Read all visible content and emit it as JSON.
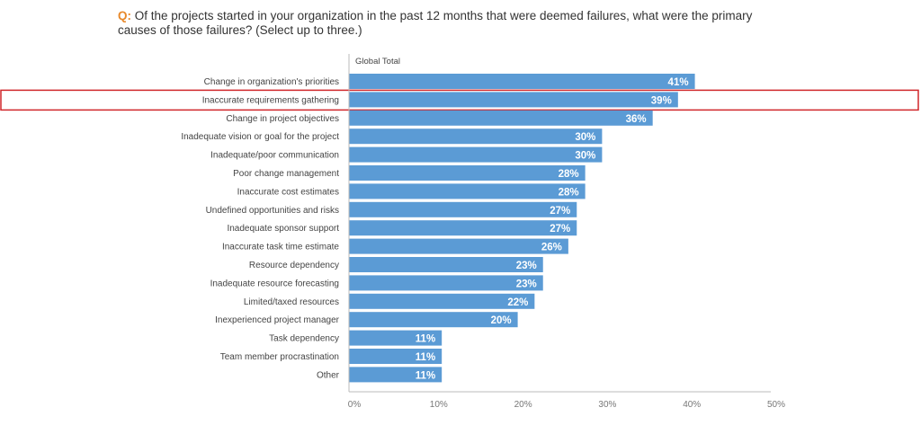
{
  "chart_data": {
    "type": "bar",
    "orientation": "horizontal",
    "question_prefix": "Q:",
    "title": "Of the projects started in your organization in the past 12 months that were deemed failures, what were the primary causes of those failures? (Select up to three.)",
    "series_label": "Global Total",
    "categories": [
      "Change in organization's priorities",
      "Inaccurate requirements gathering",
      "Change in project objectives",
      "Inadequate vision or goal for the project",
      "Inadequate/poor communication",
      "Poor change management",
      "Inaccurate cost estimates",
      "Undefined opportunities and risks",
      "Inadequate sponsor support",
      "Inaccurate task time estimate",
      "Resource dependency",
      "Inadequate resource forecasting",
      "Limited/taxed resources",
      "Inexperienced project manager",
      "Task dependency",
      "Team member procrastination",
      "Other"
    ],
    "values": [
      41,
      39,
      36,
      30,
      30,
      28,
      28,
      27,
      27,
      26,
      23,
      23,
      22,
      20,
      11,
      11,
      11
    ],
    "xlim": [
      0,
      50
    ],
    "xticks": [
      "0%",
      "10%",
      "20%",
      "30%",
      "40%",
      "50%"
    ],
    "highlighted_category": "Inaccurate requirements gathering",
    "bar_color": "#5b9bd5",
    "highlight_color": "#d0262a"
  }
}
